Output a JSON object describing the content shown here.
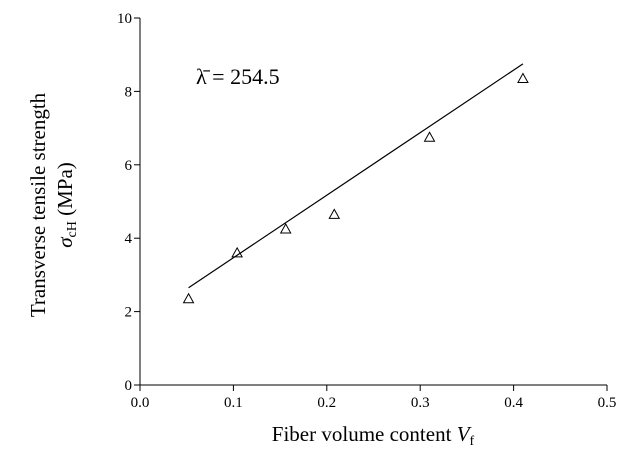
{
  "chart_data": {
    "type": "scatter",
    "annotation": "λ̄ = 254.5",
    "x_label": "Fiber volume content ",
    "x_label_var": "V",
    "x_label_sub": "f",
    "y_label": "Transverse tensile strength",
    "y_label_var": "σ",
    "y_label_sub": "cH",
    "y_label_unit": " (MPa)",
    "x": [
      0.052,
      0.104,
      0.156,
      0.208,
      0.31,
      0.41
    ],
    "values": [
      2.35,
      3.6,
      4.25,
      4.65,
      6.75,
      8.35
    ],
    "color": "#000000",
    "fit": {
      "x": [
        0.052,
        0.41
      ],
      "values": [
        2.65,
        8.75
      ]
    },
    "xlim": [
      0,
      0.5
    ],
    "xticks": [
      {
        "value": 0,
        "label": "0.0"
      },
      {
        "value": 0.1,
        "label": "0.1"
      },
      {
        "value": 0.2,
        "label": "0.2"
      },
      {
        "value": 0.3,
        "label": "0.3"
      },
      {
        "value": 0.4,
        "label": "0.4"
      },
      {
        "value": 0.5,
        "label": "0.5"
      }
    ],
    "ylim": [
      0,
      10
    ],
    "yticks": [
      0,
      2,
      4,
      6,
      8,
      10
    ]
  }
}
